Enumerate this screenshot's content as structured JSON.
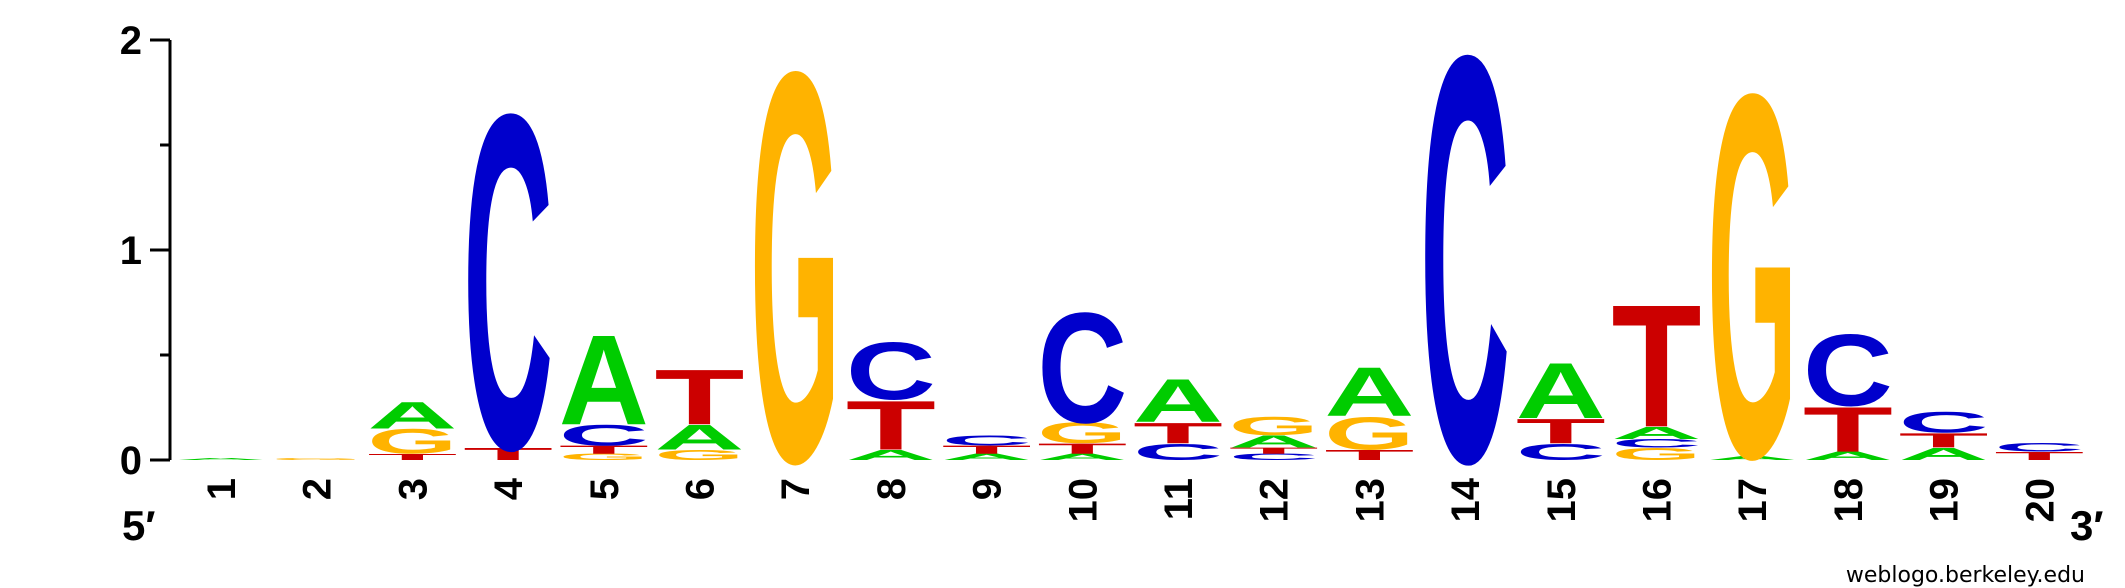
{
  "credit": "weblogo.berkeley.edu",
  "ends": {
    "five": "5′",
    "three": "3′"
  },
  "colors": {
    "A": "#00CC00",
    "C": "#0000CC",
    "G": "#FFB300",
    "T": "#CC0000"
  },
  "chart_data": {
    "type": "sequence-logo",
    "y_ticks": [
      "0",
      "1",
      "2"
    ],
    "ylim": [
      0,
      2
    ],
    "positions": [
      {
        "label": "1",
        "stack": [
          {
            "base": "A",
            "h": 0.01
          }
        ]
      },
      {
        "label": "2",
        "stack": [
          {
            "base": "G",
            "h": 0.01
          }
        ]
      },
      {
        "label": "3",
        "stack": [
          {
            "base": "T",
            "h": 0.03
          },
          {
            "base": "G",
            "h": 0.12
          },
          {
            "base": "A",
            "h": 0.13
          }
        ]
      },
      {
        "label": "4",
        "stack": [
          {
            "base": "T",
            "h": 0.06
          },
          {
            "base": "C",
            "h": 1.64
          }
        ]
      },
      {
        "label": "5",
        "stack": [
          {
            "base": "G",
            "h": 0.03
          },
          {
            "base": "T",
            "h": 0.04
          },
          {
            "base": "C",
            "h": 0.1
          },
          {
            "base": "A",
            "h": 0.44
          }
        ]
      },
      {
        "label": "6",
        "stack": [
          {
            "base": "G",
            "h": 0.05
          },
          {
            "base": "A",
            "h": 0.12
          },
          {
            "base": "T",
            "h": 0.27
          }
        ]
      },
      {
        "label": "7",
        "stack": [
          {
            "base": "G",
            "h": 1.91
          }
        ]
      },
      {
        "label": "8",
        "stack": [
          {
            "base": "A",
            "h": 0.05
          },
          {
            "base": "T",
            "h": 0.24
          },
          {
            "base": "C",
            "h": 0.28
          }
        ]
      },
      {
        "label": "9",
        "stack": [
          {
            "base": "A",
            "h": 0.03
          },
          {
            "base": "T",
            "h": 0.04
          },
          {
            "base": "C",
            "h": 0.05
          }
        ]
      },
      {
        "label": "10",
        "stack": [
          {
            "base": "A",
            "h": 0.03
          },
          {
            "base": "T",
            "h": 0.05
          },
          {
            "base": "G",
            "h": 0.1
          },
          {
            "base": "C",
            "h": 0.54
          }
        ]
      },
      {
        "label": "11",
        "stack": [
          {
            "base": "C",
            "h": 0.08
          },
          {
            "base": "T",
            "h": 0.1
          },
          {
            "base": "A",
            "h": 0.21
          }
        ]
      },
      {
        "label": "12",
        "stack": [
          {
            "base": "C",
            "h": 0.03
          },
          {
            "base": "T",
            "h": 0.03
          },
          {
            "base": "A",
            "h": 0.06
          },
          {
            "base": "G",
            "h": 0.09
          }
        ]
      },
      {
        "label": "13",
        "stack": [
          {
            "base": "T",
            "h": 0.05
          },
          {
            "base": "G",
            "h": 0.16
          },
          {
            "base": "A",
            "h": 0.24
          }
        ]
      },
      {
        "label": "14",
        "stack": [
          {
            "base": "C",
            "h": 1.99
          }
        ]
      },
      {
        "label": "15",
        "stack": [
          {
            "base": "C",
            "h": 0.08
          },
          {
            "base": "T",
            "h": 0.12
          },
          {
            "base": "A",
            "h": 0.27
          }
        ]
      },
      {
        "label": "16",
        "stack": [
          {
            "base": "G",
            "h": 0.06
          },
          {
            "base": "C",
            "h": 0.04
          },
          {
            "base": "A",
            "h": 0.06
          },
          {
            "base": "T",
            "h": 0.6
          }
        ]
      },
      {
        "label": "17",
        "stack": [
          {
            "base": "A",
            "h": 0.02
          },
          {
            "base": "G",
            "h": 1.78
          }
        ]
      },
      {
        "label": "18",
        "stack": [
          {
            "base": "A",
            "h": 0.04
          },
          {
            "base": "T",
            "h": 0.22
          },
          {
            "base": "C",
            "h": 0.35
          }
        ]
      },
      {
        "label": "19",
        "stack": [
          {
            "base": "A",
            "h": 0.06
          },
          {
            "base": "T",
            "h": 0.07
          },
          {
            "base": "C",
            "h": 0.1
          }
        ]
      },
      {
        "label": "20",
        "stack": [
          {
            "base": "T",
            "h": 0.04
          },
          {
            "base": "C",
            "h": 0.04
          }
        ]
      }
    ]
  }
}
